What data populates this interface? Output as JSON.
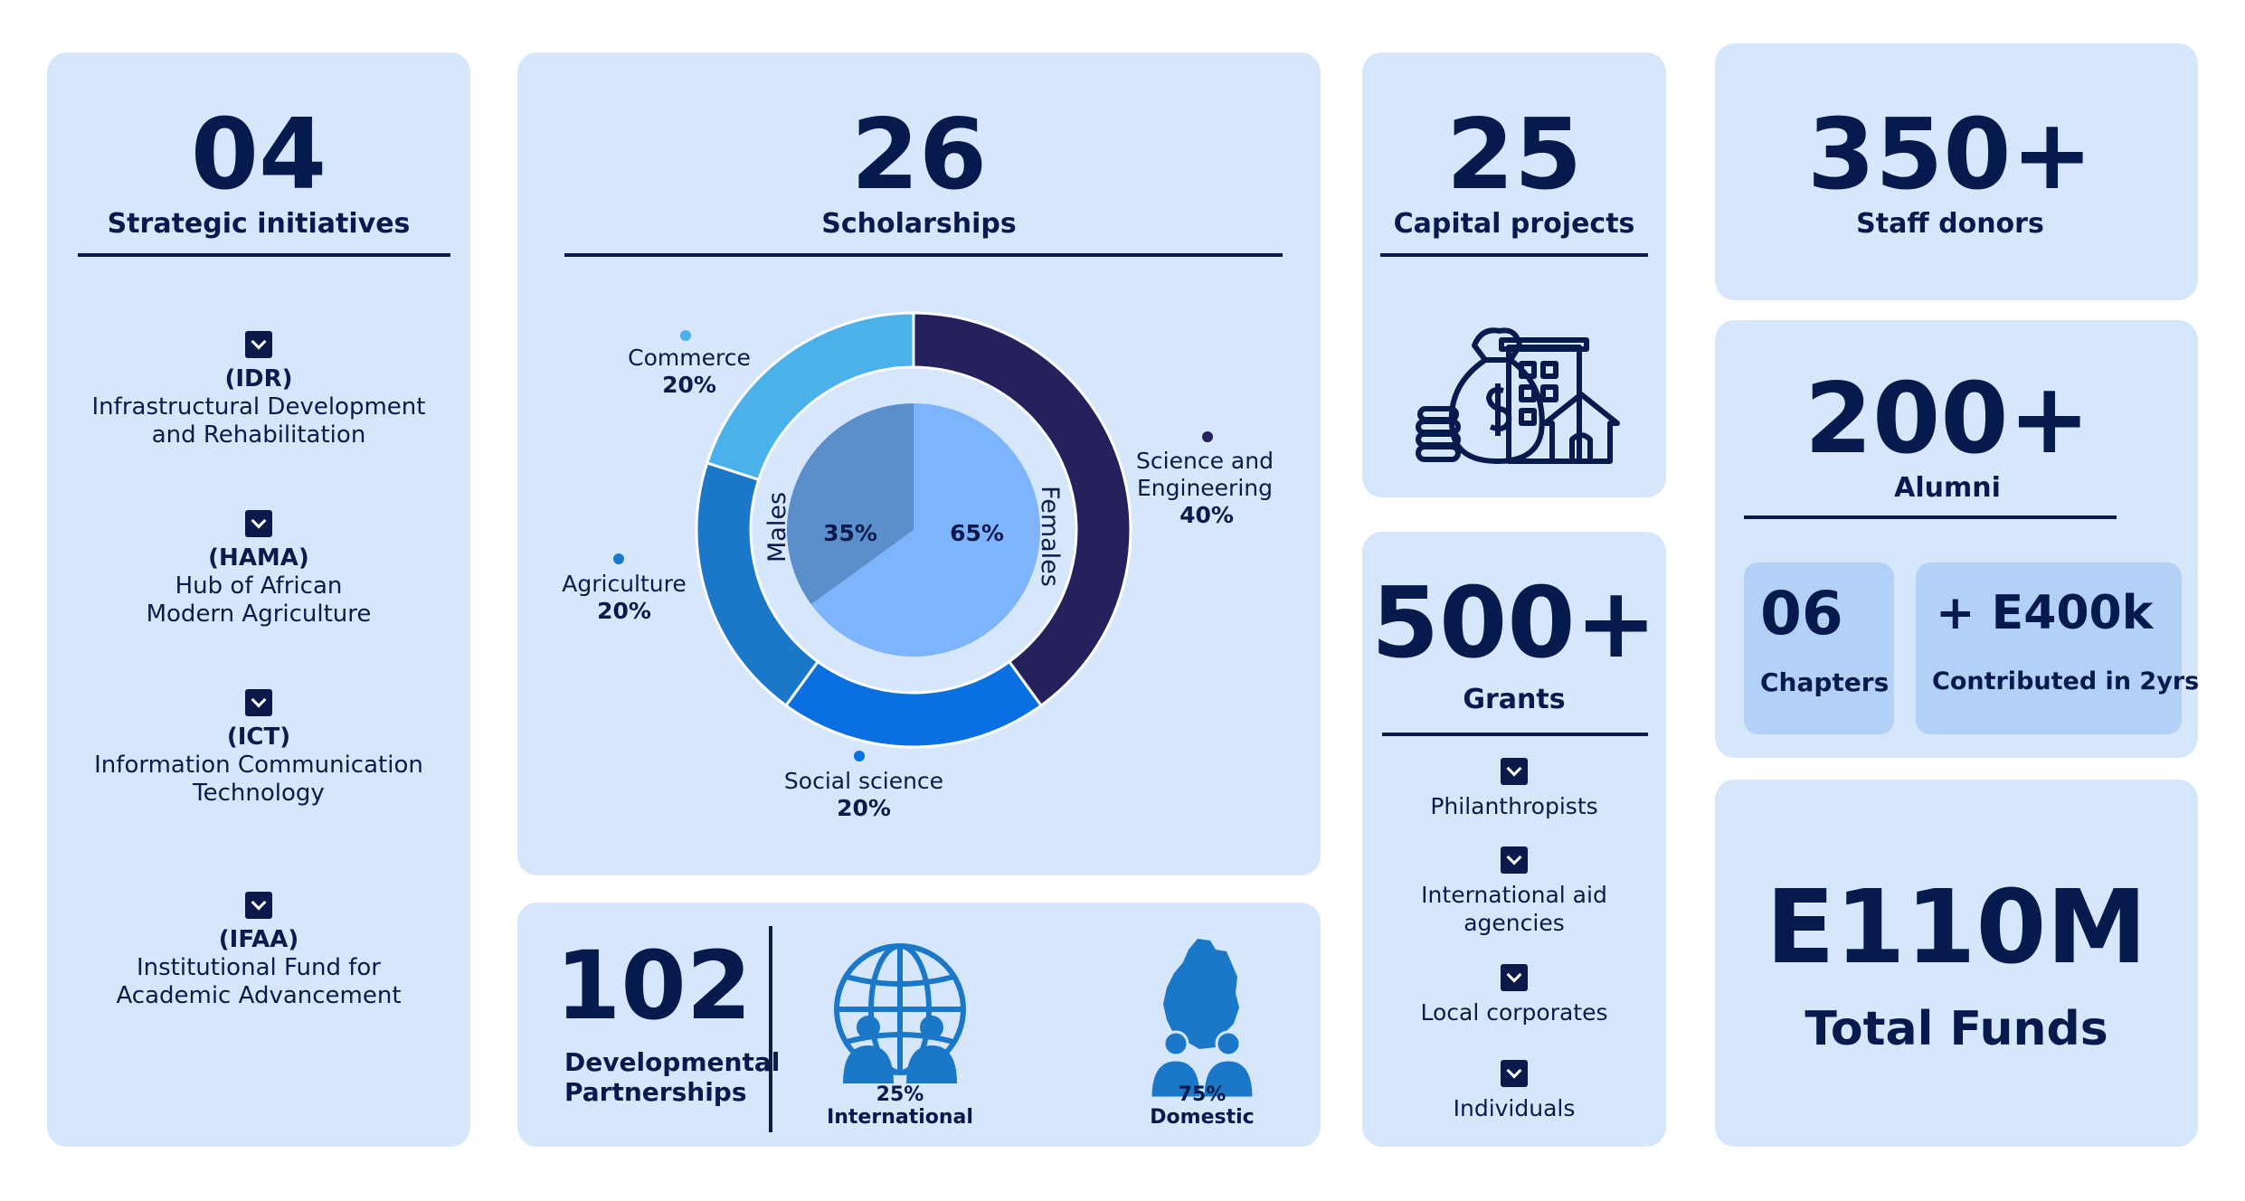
{
  "initiatives": {
    "count": "04",
    "label": "Strategic initiatives",
    "items": [
      {
        "code": "(IDR)",
        "line1": "Infrastructural Development",
        "line2": "and Rehabilitation"
      },
      {
        "code": "(HAMA)",
        "line1": "Hub of African",
        "line2": "Modern Agriculture"
      },
      {
        "code": "(ICT)",
        "line1": "Information Communication",
        "line2": "Technology"
      },
      {
        "code": "(IFAA)",
        "line1": "Institutional Fund for",
        "line2": "Academic Advancement"
      }
    ]
  },
  "scholarships": {
    "count": "26",
    "label": "Scholarships"
  },
  "chart_data": {
    "type": "pie",
    "outer_ring": {
      "categories": [
        "Science and Engineering",
        "Social science",
        "Agriculture",
        "Commerce"
      ],
      "values": [
        40,
        20,
        20,
        20
      ],
      "labels": [
        "40%",
        "20%",
        "20%",
        "20%"
      ],
      "colors": [
        "#25215c",
        "#0a6fe0",
        "#1b78c8",
        "#4ab1ea"
      ]
    },
    "inner_pie": {
      "categories": [
        "Females",
        "Males"
      ],
      "values": [
        65,
        35
      ],
      "labels": [
        "65%",
        "35%"
      ],
      "colors": [
        "#7db4fb",
        "#5b8fcb"
      ]
    }
  },
  "partnerships": {
    "count": "102",
    "line1": "Developmental",
    "line2": "Partnerships",
    "international": {
      "pct": "25%",
      "label": "International"
    },
    "domestic": {
      "pct": "75%",
      "label": "Domestic"
    }
  },
  "capital": {
    "count": "25",
    "label": "Capital projects"
  },
  "grants": {
    "count": "500+",
    "label": "Grants",
    "items": [
      "Philanthropists",
      "International aid",
      "agencies",
      "Local corporates",
      "Individuals"
    ]
  },
  "staff": {
    "count": "350+",
    "label": "Staff donors"
  },
  "alumni": {
    "count": "200+",
    "label": "Alumni",
    "chapters": {
      "value": "06",
      "label": "Chapters"
    },
    "contributed": {
      "value": "+ E400k",
      "label": "Contributed in 2yrs"
    }
  },
  "funds": {
    "value": "E110M",
    "label": "Total Funds"
  },
  "colors": {
    "card": "#d6e6fb",
    "navy": "#071a4d",
    "accent": "#1b78c8"
  }
}
